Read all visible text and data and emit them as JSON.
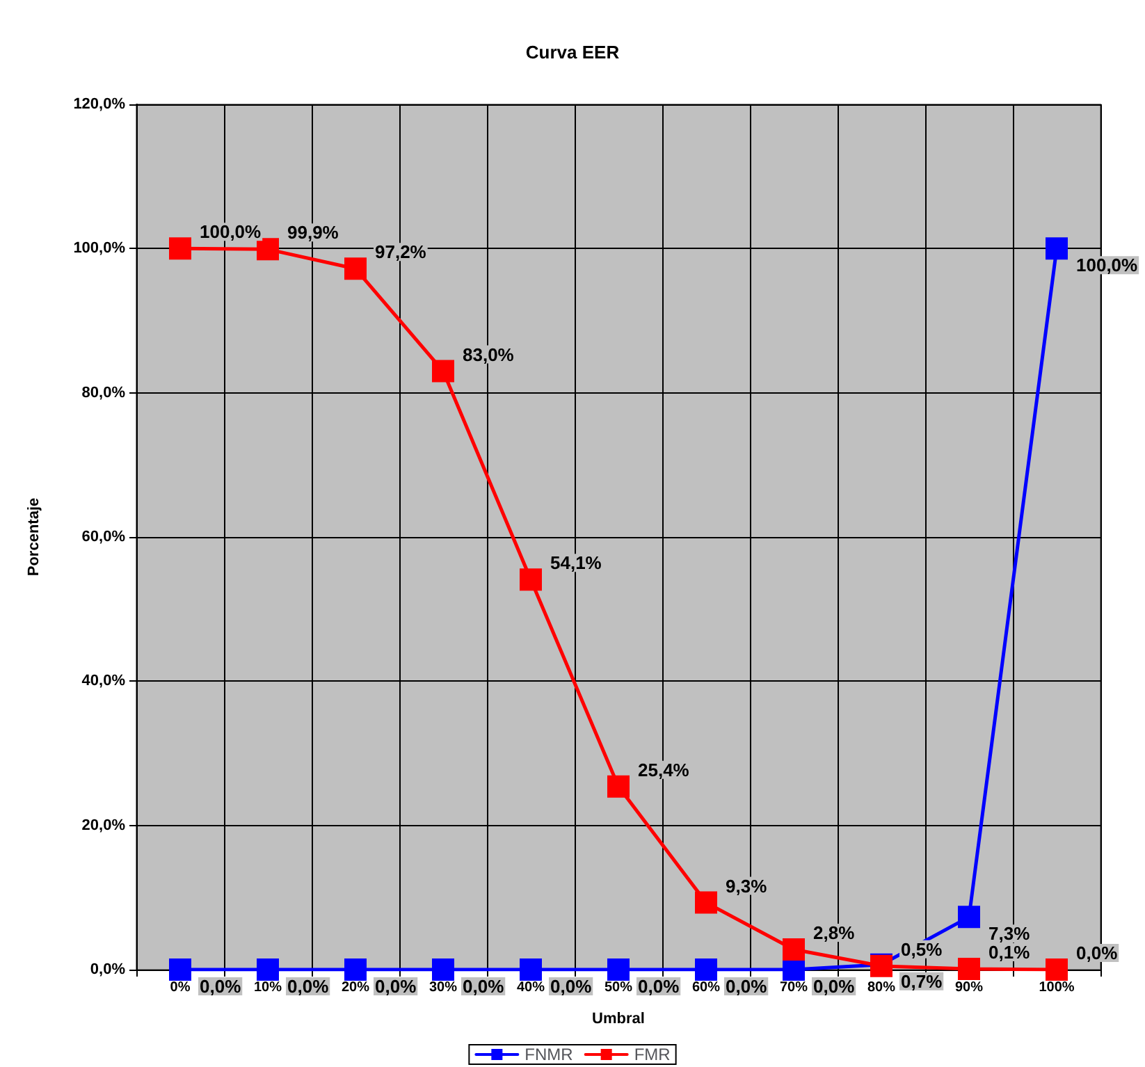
{
  "chart_data": {
    "type": "line",
    "title": "Curva EER",
    "xlabel": "Umbral",
    "ylabel": "Porcentaje",
    "categories": [
      "0%",
      "10%",
      "20%",
      "30%",
      "40%",
      "50%",
      "60%",
      "70%",
      "80%",
      "90%",
      "100%"
    ],
    "series": [
      {
        "name": "FNMR",
        "color": "#0000ff",
        "values": [
          0,
          0,
          0,
          0,
          0,
          0,
          0,
          0,
          0.7,
          7.3,
          100
        ],
        "value_labels": [
          "0,0%",
          "0,0%",
          "0,0%",
          "0,0%",
          "0,0%",
          "0,0%",
          "0,0%",
          "0,0%",
          "0,7%",
          "7,3%",
          "100,0%"
        ]
      },
      {
        "name": "FMR",
        "color": "#ff0000",
        "values": [
          100,
          99.9,
          97.2,
          83,
          54.1,
          25.4,
          9.3,
          2.8,
          0.5,
          0.1,
          0
        ],
        "value_labels": [
          "100,0%",
          "99,9%",
          "97,2%",
          "83,0%",
          "54,1%",
          "25,4%",
          "9,3%",
          "2,8%",
          "0,5%",
          "0,1%",
          "0,0%"
        ]
      }
    ],
    "ylim": [
      0,
      120
    ],
    "yticks": [
      {
        "value": 0,
        "label": "0,0%"
      },
      {
        "value": 20,
        "label": "20,0%"
      },
      {
        "value": 40,
        "label": "40,0%"
      },
      {
        "value": 60,
        "label": "60,0%"
      },
      {
        "value": 80,
        "label": "80,0%"
      },
      {
        "value": 100,
        "label": "100,0%"
      },
      {
        "value": 120,
        "label": "120,0%"
      }
    ],
    "grid": true,
    "legend": "bottom",
    "marker": "square",
    "line_style": "solid"
  }
}
